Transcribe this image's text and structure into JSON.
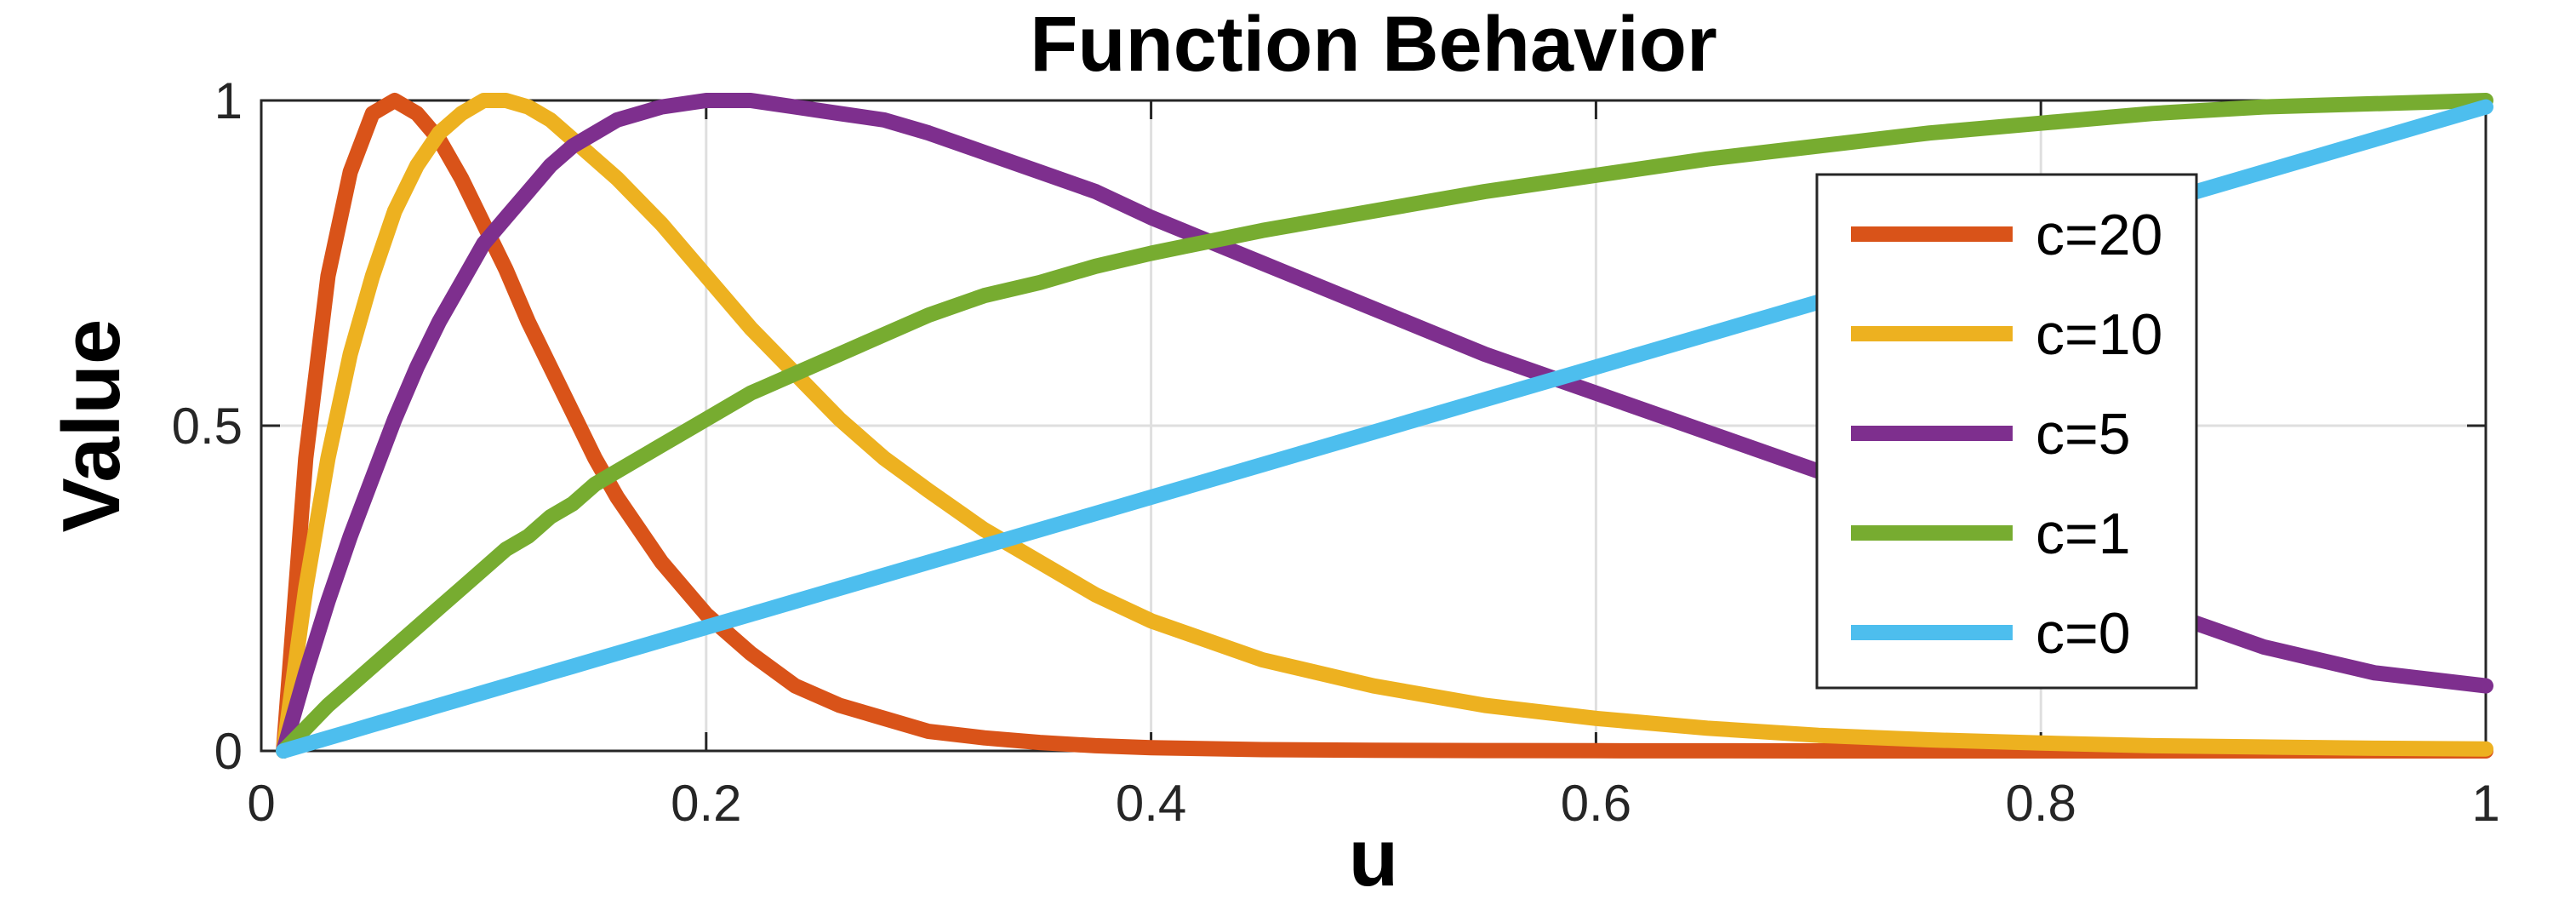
{
  "chart_data": {
    "type": "line",
    "title": "Function Behavior",
    "xlabel": "u",
    "ylabel": "Value",
    "xlim": [
      0,
      1
    ],
    "ylim": [
      0,
      1
    ],
    "xticks": [
      0,
      0.2,
      0.4,
      0.6,
      0.8,
      1
    ],
    "xtick_labels": [
      "0",
      "0.2",
      "0.4",
      "0.6",
      "0.8",
      "1"
    ],
    "yticks": [
      0,
      0.5,
      1
    ],
    "ytick_labels": [
      "0",
      "0.5",
      "1"
    ],
    "grid": true,
    "legend_position": "top-right",
    "x": [
      0.01,
      0.02,
      0.03,
      0.04,
      0.05,
      0.06,
      0.07,
      0.08,
      0.09,
      0.1,
      0.11,
      0.12,
      0.13,
      0.14,
      0.15,
      0.16,
      0.18,
      0.2,
      0.22,
      0.24,
      0.26,
      0.28,
      0.3,
      0.325,
      0.35,
      0.375,
      0.4,
      0.45,
      0.5,
      0.55,
      0.6,
      0.65,
      0.7,
      0.75,
      0.8,
      0.85,
      0.9,
      0.95,
      1.0
    ],
    "series": [
      {
        "name": "c=20",
        "color": "#d95319",
        "values": [
          0.0,
          0.45,
          0.73,
          0.89,
          0.98,
          1.0,
          0.98,
          0.94,
          0.88,
          0.81,
          0.74,
          0.66,
          0.59,
          0.52,
          0.45,
          0.39,
          0.29,
          0.21,
          0.15,
          0.1,
          0.07,
          0.05,
          0.03,
          0.02,
          0.013,
          0.008,
          0.005,
          0.002,
          0.001,
          0.0005,
          0.0002,
          0.0001,
          0.0,
          0.0,
          0.0,
          0.0,
          0.0,
          0.0,
          0.0
        ]
      },
      {
        "name": "c=10",
        "color": "#edb120",
        "values": [
          0.0,
          0.25,
          0.45,
          0.61,
          0.73,
          0.83,
          0.9,
          0.95,
          0.98,
          1.0,
          1.0,
          0.99,
          0.97,
          0.94,
          0.91,
          0.88,
          0.81,
          0.73,
          0.65,
          0.58,
          0.51,
          0.45,
          0.4,
          0.34,
          0.29,
          0.24,
          0.2,
          0.14,
          0.1,
          0.07,
          0.05,
          0.035,
          0.024,
          0.017,
          0.012,
          0.008,
          0.006,
          0.004,
          0.003
        ]
      },
      {
        "name": "c=5",
        "color": "#7e2f8e",
        "values": [
          0.0,
          0.12,
          0.23,
          0.33,
          0.42,
          0.51,
          0.59,
          0.66,
          0.72,
          0.78,
          0.82,
          0.86,
          0.9,
          0.93,
          0.95,
          0.97,
          0.99,
          1.0,
          1.0,
          0.99,
          0.98,
          0.97,
          0.95,
          0.92,
          0.89,
          0.86,
          0.82,
          0.75,
          0.68,
          0.61,
          0.55,
          0.49,
          0.43,
          0.38,
          0.3,
          0.22,
          0.16,
          0.12,
          0.1
        ]
      },
      {
        "name": "c=1",
        "color": "#77ac30",
        "values": [
          0.0,
          0.035,
          0.07,
          0.1,
          0.13,
          0.16,
          0.19,
          0.22,
          0.25,
          0.28,
          0.31,
          0.33,
          0.36,
          0.38,
          0.41,
          0.43,
          0.47,
          0.51,
          0.55,
          0.58,
          0.61,
          0.64,
          0.67,
          0.7,
          0.72,
          0.745,
          0.765,
          0.8,
          0.83,
          0.86,
          0.885,
          0.91,
          0.93,
          0.95,
          0.965,
          0.98,
          0.99,
          0.995,
          1.0
        ]
      },
      {
        "name": "c=0",
        "color": "#4dbeee",
        "values": [
          0.0,
          0.01,
          0.02,
          0.03,
          0.04,
          0.05,
          0.06,
          0.07,
          0.08,
          0.09,
          0.1,
          0.11,
          0.12,
          0.13,
          0.14,
          0.15,
          0.17,
          0.19,
          0.21,
          0.23,
          0.25,
          0.27,
          0.29,
          0.315,
          0.34,
          0.365,
          0.39,
          0.44,
          0.49,
          0.54,
          0.59,
          0.64,
          0.69,
          0.74,
          0.79,
          0.84,
          0.89,
          0.94,
          0.99
        ]
      }
    ]
  }
}
